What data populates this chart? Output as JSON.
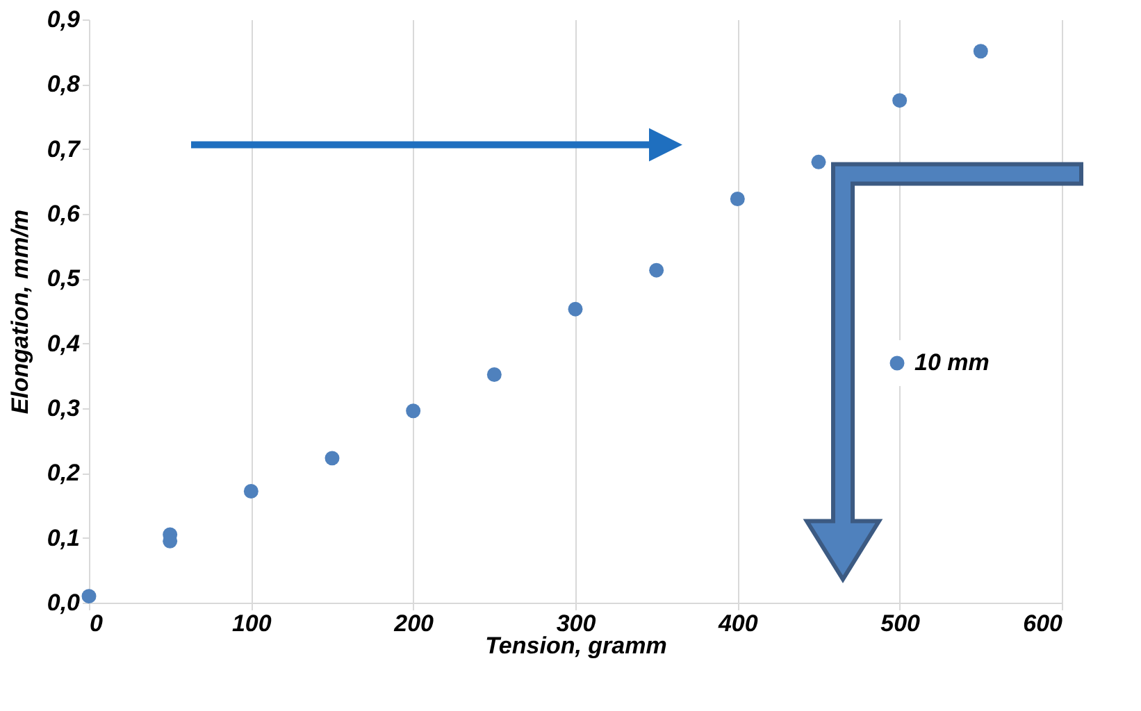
{
  "chart_data": {
    "type": "scatter",
    "xlabel": "Tension, gramm",
    "ylabel": "Elongation, mm/m",
    "x": [
      0,
      50,
      50,
      100,
      150,
      200,
      250,
      300,
      350,
      400,
      450,
      500,
      550
    ],
    "series": [
      {
        "name": "10 mm",
        "color": "#4f81bd",
        "values": [
          0.01,
          0.105,
          0.095,
          0.172,
          0.223,
          0.296,
          0.352,
          0.453,
          0.513,
          0.623,
          0.68,
          0.775,
          0.851
        ]
      }
    ],
    "xlim": [
      0,
      600
    ],
    "xticks": [
      0,
      100,
      200,
      300,
      400,
      500,
      600
    ],
    "ylim": [
      0,
      0.9
    ],
    "yticks": [
      {
        "value": 0,
        "label": "0,0"
      },
      {
        "value": 0.1,
        "label": "0,1"
      },
      {
        "value": 0.2,
        "label": "0,2"
      },
      {
        "value": 0.3,
        "label": "0,3"
      },
      {
        "value": 0.4,
        "label": "0,4"
      },
      {
        "value": 0.5,
        "label": "0,5"
      },
      {
        "value": 0.6,
        "label": "0,6"
      },
      {
        "value": 0.7,
        "label": "0,7"
      },
      {
        "value": 0.8,
        "label": "0,8"
      },
      {
        "value": 0.9,
        "label": "0,9"
      }
    ],
    "grid": "x",
    "legend": "right",
    "marker": "circle"
  }
}
